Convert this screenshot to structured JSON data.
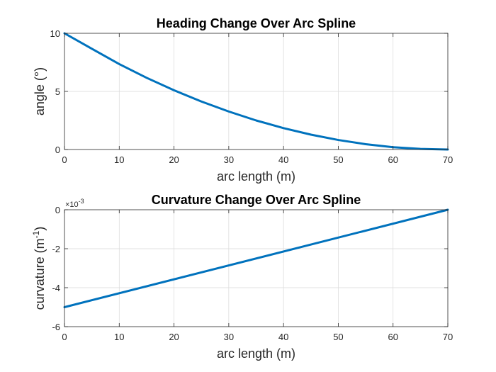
{
  "chart_data": [
    {
      "type": "line",
      "title": "Heading Change Over Arc Spline",
      "xlabel": "arc length (m)",
      "ylabel": "angle (°)",
      "xlim": [
        0,
        70
      ],
      "ylim": [
        0,
        10
      ],
      "xticks": [
        0,
        10,
        20,
        30,
        40,
        50,
        60,
        70
      ],
      "yticks": [
        0,
        5,
        10
      ],
      "grid": true,
      "color": "#0072BD",
      "series": [
        {
          "x": [
            0,
            5,
            10,
            15,
            20,
            25,
            30,
            35,
            40,
            45,
            50,
            55,
            60,
            65,
            70
          ],
          "y": [
            10,
            8.67,
            7.35,
            6.17,
            5.1,
            4.13,
            3.27,
            2.5,
            1.84,
            1.28,
            0.82,
            0.46,
            0.2,
            0.05,
            0.0
          ]
        }
      ]
    },
    {
      "type": "line",
      "title": "Curvature Change Over Arc Spline",
      "xlabel": "arc length (m)",
      "ylabel_main": "curvature (m",
      "ylabel_sup": "-1",
      "ylabel_end": ")",
      "exponent_base": "×10",
      "exponent_power": "-3",
      "xlim": [
        0,
        70
      ],
      "ylim": [
        -6,
        0
      ],
      "xticks": [
        0,
        10,
        20,
        30,
        40,
        50,
        60,
        70
      ],
      "yticks": [
        -6,
        -4,
        -2,
        0
      ],
      "ytick_labels": [
        "-6",
        "-4",
        "-2",
        "0"
      ],
      "grid": true,
      "color": "#0072BD",
      "series": [
        {
          "x": [
            0,
            70
          ],
          "y": [
            -5,
            0
          ]
        }
      ]
    }
  ]
}
